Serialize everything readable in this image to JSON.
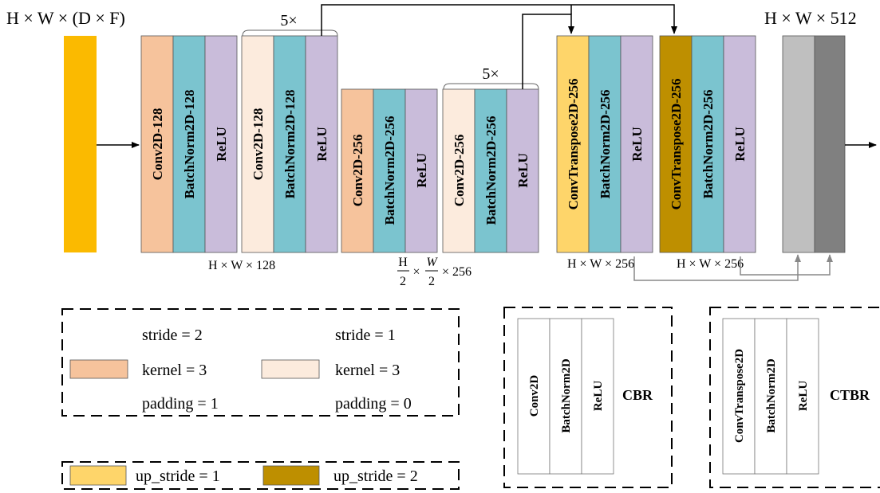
{
  "input_shape": "H × W × (D × F)",
  "output_shape": "H × W × 512",
  "colors": {
    "input": "#FBBA00",
    "conv_s2": "#F6C39C",
    "conv_s1": "#FCEBDD",
    "batchnorm": "#7BC4CF",
    "relu": "#C9BCDA",
    "convT_up1": "#FED56A",
    "convT_up2": "#BE8F00",
    "out_light": "#BFBFBF",
    "out_dark": "#808080"
  },
  "blocks": [
    {
      "layers": [
        "Conv2D-128",
        "BatchNorm2D-128",
        "ReLU"
      ]
    },
    {
      "repeat": "5×",
      "layers": [
        "Conv2D-128",
        "BatchNorm2D-128",
        "ReLU"
      ]
    },
    {
      "layers": [
        "Conv2D-256",
        "BatchNorm2D-256",
        "ReLU"
      ]
    },
    {
      "repeat": "5×",
      "layers": [
        "Conv2D-256",
        "BatchNorm2D-256",
        "ReLU"
      ]
    },
    {
      "layers": [
        "ConvTranspose2D-256",
        "BatchNorm2D-256",
        "ReLU"
      ]
    },
    {
      "layers": [
        "ConvTranspose2D-256",
        "BatchNorm2D-256",
        "ReLU"
      ]
    }
  ],
  "dims": {
    "d128": "H × W × 128",
    "d256_half_frac_h": "H",
    "d256_half_frac_w": "W",
    "d256_half_den": "2",
    "d256_half_tail": "× 256",
    "d256a": "H × W × 256",
    "d256b": "H × W × 256"
  },
  "legend": {
    "stride2": "stride = 2",
    "kernel2": "kernel = 3",
    "padding2": "padding = 1",
    "stride1": "stride = 1",
    "kernel1": "kernel = 3",
    "padding1": "padding = 0",
    "up1": "up_stride = 1",
    "up2": "up_stride = 2"
  },
  "cbr": {
    "layers": [
      "Conv2D",
      "BatchNorm2D",
      "ReLU"
    ],
    "label": "CBR"
  },
  "ctbr": {
    "layers": [
      "ConvTranspose2D",
      "BatchNorm2D",
      "ReLU"
    ],
    "label": "CTBR"
  }
}
